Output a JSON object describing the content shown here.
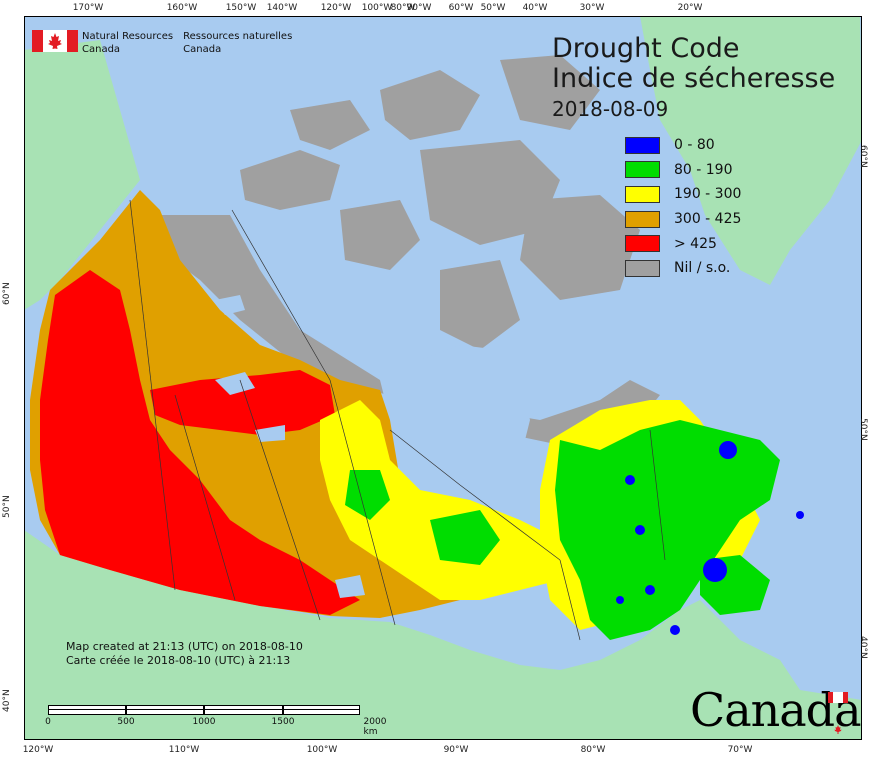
{
  "agency": {
    "name_en_line1": "Natural Resources",
    "name_en_line2": "Canada",
    "name_fr_line1": "Ressources naturelles",
    "name_fr_line2": "Canada"
  },
  "title": {
    "en": "Drought Code",
    "fr": "Indice de sécheresse",
    "date": "2018-08-09"
  },
  "legend": [
    {
      "label": "0 - 80",
      "color": "#0000ff"
    },
    {
      "label": "80 - 190",
      "color": "#00dd00"
    },
    {
      "label": "190 - 300",
      "color": "#ffff00"
    },
    {
      "label": "300 - 425",
      "color": "#e0a000"
    },
    {
      "label": "> 425",
      "color": "#ff0000"
    },
    {
      "label": "Nil / s.o.",
      "color": "#a0a0a0"
    }
  ],
  "credit": {
    "en": "Map created at 21:13 (UTC) on 2018-08-10",
    "fr": "Carte créée le 2018-08-10 (UTC) à 21:13"
  },
  "scale": {
    "labels": [
      "0",
      "500",
      "1000",
      "1500",
      "2000 km"
    ]
  },
  "graticule": {
    "top": [
      "170°W",
      "160°W",
      "150°W",
      "140°W",
      "120°W",
      "100°W",
      "90°W",
      "80°W",
      "60°W",
      "50°W",
      "40°W",
      "30°W",
      "20°W"
    ],
    "bottom": [
      "120°W",
      "110°W",
      "100°W",
      "90°W",
      "80°W",
      "70°W"
    ],
    "left": [
      "60°N",
      "50°N",
      "40°N"
    ],
    "right": [
      "60°N",
      "50°N",
      "40°N"
    ]
  },
  "wordmark": "Canada",
  "colors": {
    "ocean": "#a8cbf0",
    "foreign_land": "#a8e2b4",
    "nil": "#a0a0a0"
  }
}
